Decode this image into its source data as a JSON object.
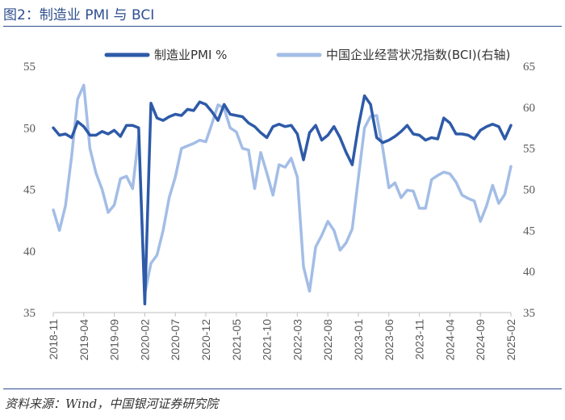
{
  "header": {
    "figure_title": "图2：制造业 PMI 与 BCI",
    "source": "资料来源：Wind，中国银河证券研究院"
  },
  "chart_data": {
    "type": "line",
    "title": "",
    "x_tick_labels": [
      "2018-11",
      "2019-04",
      "2019-09",
      "2020-02",
      "2020-07",
      "2020-12",
      "2021-05",
      "2021-10",
      "2022-03",
      "2022-08",
      "2023-01",
      "2023-06",
      "2023-11",
      "2024-04",
      "2024-09",
      "2025-02"
    ],
    "y_left": {
      "range": [
        35,
        55
      ],
      "ticks": [
        "35",
        "40",
        "45",
        "50",
        "55"
      ]
    },
    "y_right": {
      "range": [
        35,
        65
      ],
      "ticks": [
        "35",
        "40",
        "45",
        "50",
        "55",
        "60",
        "65"
      ]
    },
    "legend_position": "top",
    "grid": false,
    "x": [
      "2018-11",
      "2018-12",
      "2019-01",
      "2019-02",
      "2019-03",
      "2019-04",
      "2019-05",
      "2019-06",
      "2019-07",
      "2019-08",
      "2019-09",
      "2019-10",
      "2019-11",
      "2019-12",
      "2020-01",
      "2020-02",
      "2020-03",
      "2020-04",
      "2020-05",
      "2020-06",
      "2020-07",
      "2020-08",
      "2020-09",
      "2020-10",
      "2020-11",
      "2020-12",
      "2021-01",
      "2021-02",
      "2021-03",
      "2021-04",
      "2021-05",
      "2021-06",
      "2021-07",
      "2021-08",
      "2021-09",
      "2021-10",
      "2021-11",
      "2021-12",
      "2022-01",
      "2022-02",
      "2022-03",
      "2022-04",
      "2022-05",
      "2022-06",
      "2022-07",
      "2022-08",
      "2022-09",
      "2022-10",
      "2022-11",
      "2022-12",
      "2023-01",
      "2023-02",
      "2023-03",
      "2023-04",
      "2023-05",
      "2023-06",
      "2023-07",
      "2023-08",
      "2023-09",
      "2023-10",
      "2023-11",
      "2023-12",
      "2024-01",
      "2024-02",
      "2024-03",
      "2024-04",
      "2024-05",
      "2024-06",
      "2024-07",
      "2024-08",
      "2024-09",
      "2024-10",
      "2024-11",
      "2024-12",
      "2025-01",
      "2025-02"
    ],
    "series": [
      {
        "name": "制造业PMI %",
        "axis": "left",
        "color": "#2e5aa8",
        "values": [
          50.0,
          49.4,
          49.5,
          49.2,
          50.5,
          50.1,
          49.4,
          49.4,
          49.7,
          49.5,
          49.8,
          49.3,
          50.2,
          50.2,
          50.0,
          35.7,
          52.0,
          50.8,
          50.6,
          50.9,
          51.1,
          51.0,
          51.5,
          51.4,
          52.1,
          51.9,
          51.3,
          50.6,
          51.9,
          51.1,
          51.0,
          50.9,
          50.4,
          50.1,
          49.6,
          49.2,
          50.1,
          50.3,
          50.1,
          50.2,
          49.5,
          47.4,
          49.6,
          50.2,
          49.0,
          49.4,
          50.1,
          49.2,
          48.0,
          47.0,
          50.1,
          52.6,
          51.9,
          49.2,
          48.8,
          49.0,
          49.3,
          49.7,
          50.2,
          49.5,
          49.4,
          49.0,
          49.2,
          49.1,
          50.8,
          50.4,
          49.5,
          49.5,
          49.4,
          49.1,
          49.8,
          50.1,
          50.3,
          50.1,
          49.1,
          50.2
        ]
      },
      {
        "name": "中国企业经营状况指数(BCI)(右轴)",
        "axis": "right",
        "color": "#a3bde6",
        "values": [
          47.5,
          45.0,
          48.0,
          54.0,
          61.0,
          62.7,
          55.0,
          52.0,
          50.0,
          47.2,
          48.1,
          51.3,
          51.6,
          50.1,
          56.6,
          37.3,
          41.0,
          42.0,
          45.0,
          49.0,
          51.5,
          55.0,
          55.3,
          55.6,
          56.0,
          55.8,
          58.0,
          60.3,
          59.9,
          57.5,
          57.0,
          55.0,
          54.8,
          50.1,
          54.5,
          52.0,
          49.3,
          53.0,
          52.7,
          53.8,
          51.5,
          40.6,
          37.6,
          43.0,
          44.4,
          46.1,
          45.0,
          42.6,
          43.5,
          45.2,
          51.4,
          57.5,
          58.9,
          59.0,
          55.0,
          50.2,
          50.8,
          49.0,
          49.9,
          49.8,
          47.7,
          47.7,
          51.2,
          51.7,
          52.1,
          51.9,
          50.9,
          49.3,
          48.9,
          48.6,
          46.1,
          48.0,
          50.5,
          48.3,
          49.4,
          52.8
        ]
      }
    ]
  }
}
